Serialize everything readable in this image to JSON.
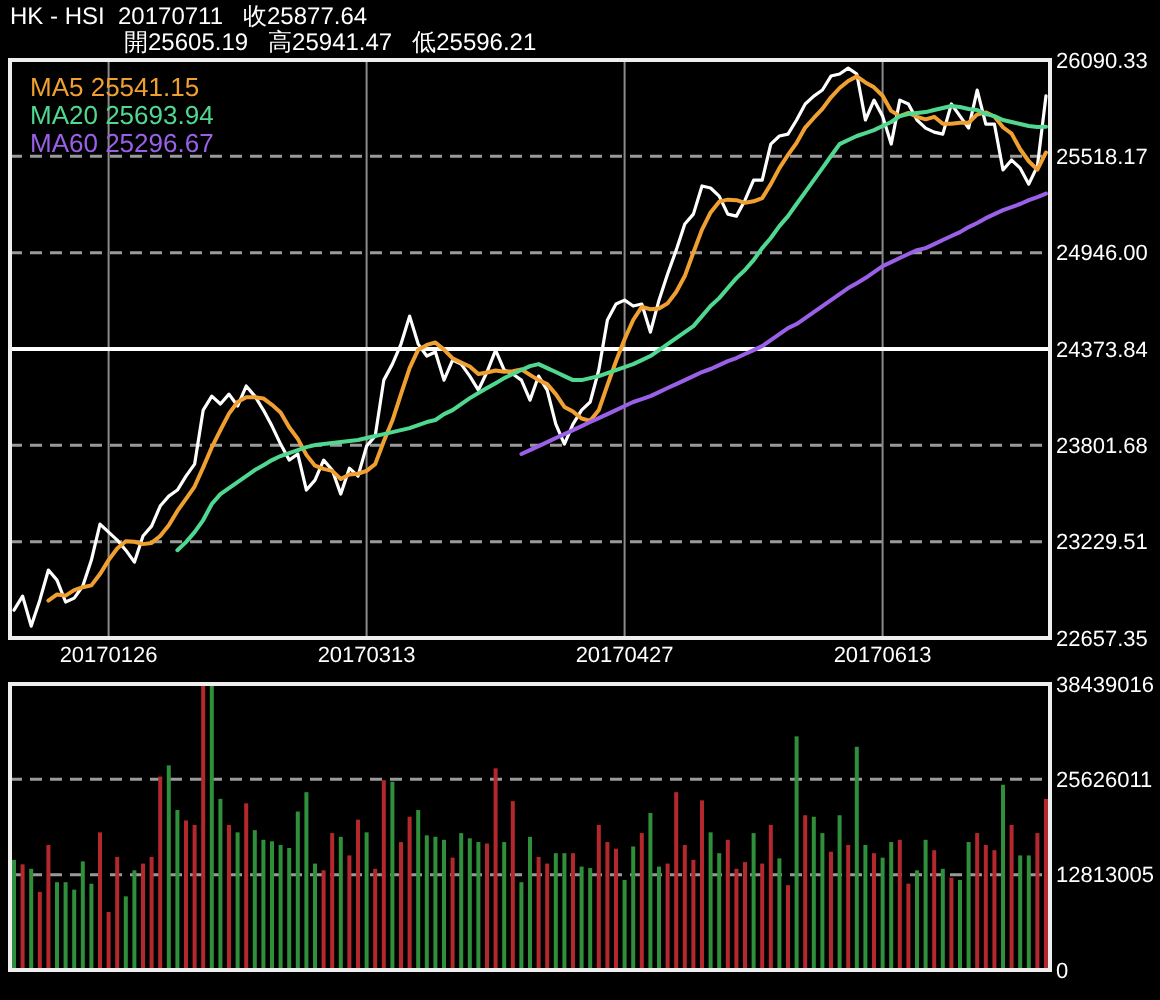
{
  "chart_data": [
    {
      "type": "line",
      "title": "HK - HSI  20170711   收25877.64",
      "subtitle": "開25605.19   高25941.47   低25596.21",
      "categories": [
        null,
        null,
        null,
        null,
        null,
        null,
        null,
        null,
        null,
        null,
        null,
        "20170126",
        null,
        null,
        null,
        null,
        null,
        null,
        null,
        null,
        null,
        null,
        null,
        null,
        null,
        null,
        null,
        null,
        null,
        null,
        null,
        null,
        null,
        null,
        null,
        null,
        null,
        null,
        null,
        null,
        null,
        "20170313",
        null,
        null,
        null,
        null,
        null,
        null,
        null,
        null,
        null,
        null,
        null,
        null,
        null,
        null,
        null,
        null,
        null,
        null,
        null,
        null,
        null,
        null,
        null,
        null,
        null,
        null,
        null,
        null,
        null,
        "20170427",
        null,
        null,
        null,
        null,
        null,
        null,
        null,
        null,
        null,
        null,
        null,
        null,
        null,
        null,
        null,
        null,
        null,
        null,
        null,
        null,
        null,
        null,
        null,
        null,
        null,
        null,
        null,
        null,
        null,
        "20170613",
        null,
        null,
        null,
        null,
        null,
        null,
        null,
        null,
        null,
        null,
        null,
        null,
        null,
        null,
        null,
        null,
        null,
        null,
        null
      ],
      "series": [
        {
          "color": "#ffffff",
          "values": [
            22823,
            22906,
            22728,
            22882,
            23061,
            23001,
            22871,
            22894,
            22966,
            23120,
            23334,
            23286,
            23239,
            23179,
            23108,
            23263,
            23322,
            23441,
            23500,
            23536,
            23619,
            23690,
            24011,
            24094,
            24047,
            24106,
            24035,
            24154,
            24094,
            24011,
            23916,
            23809,
            23714,
            23750,
            23536,
            23595,
            23714,
            23655,
            23512,
            23666,
            23619,
            23797,
            23857,
            24189,
            24284,
            24403,
            24569,
            24403,
            24332,
            24356,
            24189,
            24308,
            24284,
            24213,
            24130,
            24237,
            24367,
            24249,
            24225,
            24189,
            24070,
            24213,
            24130,
            23928,
            23809,
            23928,
            24011,
            24059,
            24249,
            24546,
            24641,
            24664,
            24629,
            24641,
            24474,
            24664,
            24819,
            24961,
            25116,
            25175,
            25342,
            25330,
            25282,
            25175,
            25163,
            25258,
            25377,
            25377,
            25591,
            25639,
            25650,
            25734,
            25829,
            25876,
            25912,
            25995,
            26007,
            26042,
            26007,
            25734,
            25852,
            25757,
            25591,
            25852,
            25829,
            25734,
            25686,
            25662,
            25650,
            25829,
            25757,
            25686,
            25912,
            25710,
            25710,
            25437,
            25496,
            25448,
            25353,
            25460,
            25877.64
          ]
        },
        {
          "name": "MA5 25541.15",
          "color": "#f0a030",
          "values": [
            null,
            null,
            null,
            null,
            22880,
            22916,
            22909,
            22942,
            22959,
            22970,
            23037,
            23120,
            23189,
            23232,
            23229,
            23215,
            23222,
            23263,
            23327,
            23412,
            23484,
            23557,
            23671,
            23790,
            23892,
            23990,
            24059,
            24087,
            24087,
            24080,
            24042,
            23997,
            23909,
            23840,
            23745,
            23681,
            23662,
            23650,
            23602,
            23628,
            23633,
            23650,
            23690,
            23826,
            23949,
            24106,
            24260,
            24370,
            24398,
            24413,
            24370,
            24318,
            24294,
            24270,
            24225,
            24234,
            24246,
            24239,
            24242,
            24253,
            24220,
            24189,
            24165,
            24106,
            24030,
            24002,
            23961,
            23947,
            24011,
            24159,
            24301,
            24432,
            24546,
            24624,
            24610,
            24614,
            24645,
            24712,
            24807,
            24947,
            25083,
            25185,
            25249,
            25261,
            25258,
            25242,
            25251,
            25270,
            25353,
            25448,
            25527,
            25598,
            25689,
            25746,
            25800,
            25869,
            25924,
            25966,
            25993,
            25957,
            25928,
            25878,
            25788,
            25757,
            25776,
            25753,
            25738,
            25753,
            25712,
            25712,
            25717,
            25717,
            25767,
            25779,
            25755,
            25691,
            25653,
            25560,
            25489,
            25439,
            25541.15
          ]
        },
        {
          "name": "MA20 25693.94",
          "color": "#50d890",
          "values": [
            null,
            null,
            null,
            null,
            null,
            null,
            null,
            null,
            null,
            null,
            null,
            null,
            null,
            null,
            null,
            null,
            null,
            null,
            null,
            23179,
            23227,
            23286,
            23358,
            23453,
            23512,
            23548,
            23583,
            23619,
            23655,
            23684,
            23714,
            23738,
            23756,
            23773,
            23791,
            23803,
            23809,
            23815,
            23821,
            23827,
            23833,
            23845,
            23857,
            23868,
            23880,
            23892,
            23904,
            23922,
            23940,
            23952,
            23987,
            24011,
            24047,
            24082,
            24112,
            24142,
            24171,
            24201,
            24225,
            24249,
            24272,
            24284,
            24260,
            24237,
            24213,
            24189,
            24189,
            24201,
            24213,
            24231,
            24249,
            24266,
            24284,
            24308,
            24332,
            24367,
            24403,
            24439,
            24474,
            24510,
            24569,
            24629,
            24676,
            24736,
            24795,
            24843,
            24902,
            24973,
            25033,
            25104,
            25163,
            25235,
            25306,
            25377,
            25448,
            25520,
            25591,
            25615,
            25639,
            25656,
            25674,
            25698,
            25722,
            25757,
            25769,
            25775,
            25781,
            25793,
            25805,
            25817,
            25811,
            25799,
            25793,
            25769,
            25757,
            25734,
            25722,
            25710,
            25698,
            25692,
            25693.94
          ]
        },
        {
          "name": "MA60 25296.67",
          "color": "#9a60e8",
          "values": [
            null,
            null,
            null,
            null,
            null,
            null,
            null,
            null,
            null,
            null,
            null,
            null,
            null,
            null,
            null,
            null,
            null,
            null,
            null,
            null,
            null,
            null,
            null,
            null,
            null,
            null,
            null,
            null,
            null,
            null,
            null,
            null,
            null,
            null,
            null,
            null,
            null,
            null,
            null,
            null,
            null,
            null,
            null,
            null,
            null,
            null,
            null,
            null,
            null,
            null,
            null,
            null,
            null,
            null,
            null,
            null,
            null,
            null,
            null,
            23750,
            23773,
            23797,
            23821,
            23845,
            23868,
            23892,
            23916,
            23940,
            23963,
            23987,
            24011,
            24035,
            24059,
            24076,
            24094,
            24118,
            24142,
            24165,
            24189,
            24213,
            24237,
            24255,
            24278,
            24302,
            24320,
            24344,
            24367,
            24391,
            24427,
            24462,
            24498,
            24522,
            24557,
            24593,
            24629,
            24664,
            24700,
            24736,
            24765,
            24795,
            24831,
            24866,
            24890,
            24914,
            24938,
            24961,
            24973,
            24997,
            25021,
            25045,
            25068,
            25098,
            25122,
            25151,
            25175,
            25199,
            25217,
            25235,
            25258,
            25276,
            25296.67
          ]
        }
      ],
      "ylim": [
        22657.35,
        26090.33
      ],
      "yticks": [
        {
          "value": 22657.35,
          "label": "22657.35"
        },
        {
          "value": 23229.51,
          "label": "23229.51"
        },
        {
          "value": 23801.68,
          "label": "23801.68"
        },
        {
          "value": 24373.84,
          "label": "24373.84"
        },
        {
          "value": 24946.0,
          "label": "24946.00"
        },
        {
          "value": 25518.17,
          "label": "25518.17"
        },
        {
          "value": 26090.33,
          "label": "26090.33"
        }
      ],
      "ref_lines": [
        {
          "axis": "y",
          "value": 24373.84,
          "color": "#ffffff"
        }
      ],
      "grid": true,
      "legend": "top left",
      "marker": "none",
      "line_style": "solid"
    },
    {
      "type": "bar",
      "categories": [
        null,
        null,
        null,
        null,
        null,
        null,
        null,
        null,
        null,
        null,
        null,
        null,
        null,
        null,
        null,
        null,
        null,
        null,
        null,
        null,
        null,
        null,
        null,
        null,
        null,
        null,
        null,
        null,
        null,
        null,
        null,
        null,
        null,
        null,
        null,
        null,
        null,
        null,
        null,
        null,
        null,
        null,
        null,
        null,
        null,
        null,
        null,
        null,
        null,
        null,
        null,
        null,
        null,
        null,
        null,
        null,
        null,
        null,
        null,
        null,
        null,
        null,
        null,
        null,
        null,
        null,
        null,
        null,
        null,
        null,
        null,
        null,
        null,
        null,
        null,
        null,
        null,
        null,
        null,
        null,
        null,
        null,
        null,
        null,
        null,
        null,
        null,
        null,
        null,
        null,
        null,
        null,
        null,
        null,
        null,
        null,
        null,
        null,
        null,
        null,
        null,
        null,
        null,
        null,
        null,
        null,
        null,
        null,
        null,
        null,
        null,
        null,
        null,
        null,
        null,
        null,
        null,
        null,
        null,
        null,
        null
      ],
      "values": [
        14800000,
        14200000,
        13600000,
        10500000,
        16800000,
        11800000,
        11800000,
        10800000,
        14600000,
        11600000,
        18500000,
        7800000,
        15200000,
        9900000,
        13400000,
        14300000,
        15200000,
        26000000,
        27500000,
        21500000,
        20100000,
        19500000,
        38400000,
        38300000,
        23000000,
        19500000,
        18500000,
        22400000,
        18800000,
        17500000,
        17300000,
        16800000,
        16400000,
        21300000,
        23900000,
        14300000,
        13400000,
        18400000,
        17900000,
        15400000,
        20200000,
        18500000,
        13600000,
        25500000,
        25300000,
        17200000,
        20600000,
        21500000,
        18100000,
        17900000,
        17500000,
        15100000,
        18400000,
        17700000,
        17200000,
        17000000,
        27100000,
        17200000,
        22700000,
        11800000,
        17900000,
        15200000,
        14300000,
        15700000,
        15700000,
        15700000,
        13900000,
        13700000,
        19500000,
        17200000,
        16300000,
        12100000,
        16600000,
        18400000,
        21100000,
        13900000,
        14300000,
        23900000,
        16800000,
        14800000,
        22800000,
        18500000,
        15700000,
        17500000,
        13600000,
        14500000,
        18400000,
        14300000,
        19500000,
        15000000,
        11400000,
        31400000,
        20800000,
        20600000,
        18400000,
        15900000,
        20800000,
        16800000,
        30000000,
        16800000,
        15700000,
        15100000,
        17200000,
        17500000,
        11600000,
        13400000,
        17500000,
        16100000,
        13600000,
        12400000,
        12100000,
        17200000,
        18400000,
        16800000,
        16100000,
        24900000,
        19500000,
        15400000,
        15400000,
        18400000,
        23000000
      ],
      "colors": [
        "#2f8f3a",
        "#b3282d",
        "#2f8f3a",
        "#b3282d",
        "#b3282d",
        "#2f8f3a",
        "#2f8f3a",
        "#2f8f3a",
        "#2f8f3a",
        "#2f8f3a",
        "#b3282d",
        "#b3282d",
        "#b3282d",
        "#2f8f3a",
        "#2f8f3a",
        "#b3282d",
        "#b3282d",
        "#b3282d",
        "#2f8f3a",
        "#2f8f3a",
        "#b3282d",
        "#b3282d",
        "#b3282d",
        "#2f8f3a",
        "#2f8f3a",
        "#b3282d",
        "#2f8f3a",
        "#b3282d",
        "#2f8f3a",
        "#2f8f3a",
        "#2f8f3a",
        "#2f8f3a",
        "#2f8f3a",
        "#2f8f3a",
        "#2f8f3a",
        "#2f8f3a",
        "#b3282d",
        "#b3282d",
        "#2f8f3a",
        "#b3282d",
        "#b3282d",
        "#2f8f3a",
        "#b3282d",
        "#b3282d",
        "#2f8f3a",
        "#b3282d",
        "#b3282d",
        "#2f8f3a",
        "#2f8f3a",
        "#2f8f3a",
        "#2f8f3a",
        "#b3282d",
        "#2f8f3a",
        "#2f8f3a",
        "#2f8f3a",
        "#b3282d",
        "#b3282d",
        "#2f8f3a",
        "#b3282d",
        "#2f8f3a",
        "#2f8f3a",
        "#b3282d",
        "#b3282d",
        "#2f8f3a",
        "#2f8f3a",
        "#b3282d",
        "#2f8f3a",
        "#2f8f3a",
        "#b3282d",
        "#b3282d",
        "#b3282d",
        "#2f8f3a",
        "#2f8f3a",
        "#b3282d",
        "#2f8f3a",
        "#2f8f3a",
        "#b3282d",
        "#b3282d",
        "#b3282d",
        "#b3282d",
        "#b3282d",
        "#2f8f3a",
        "#2f8f3a",
        "#b3282d",
        "#b3282d",
        "#b3282d",
        "#2f8f3a",
        "#b3282d",
        "#b3282d",
        "#2f8f3a",
        "#b3282d",
        "#2f8f3a",
        "#b3282d",
        "#2f8f3a",
        "#2f8f3a",
        "#b3282d",
        "#2f8f3a",
        "#b3282d",
        "#2f8f3a",
        "#2f8f3a",
        "#b3282d",
        "#2f8f3a",
        "#2f8f3a",
        "#b3282d",
        "#b3282d",
        "#2f8f3a",
        "#2f8f3a",
        "#b3282d",
        "#2f8f3a",
        "#b3282d",
        "#2f8f3a",
        "#2f8f3a",
        "#b3282d",
        "#b3282d",
        "#b3282d",
        "#2f8f3a",
        "#b3282d",
        "#2f8f3a",
        "#2f8f3a",
        "#b3282d",
        "#b3282d"
      ],
      "ylim": [
        0,
        38439016
      ],
      "yticks": [
        0,
        12813005,
        25626011,
        38439016
      ],
      "grid": "y",
      "tick_labels": "y"
    }
  ]
}
